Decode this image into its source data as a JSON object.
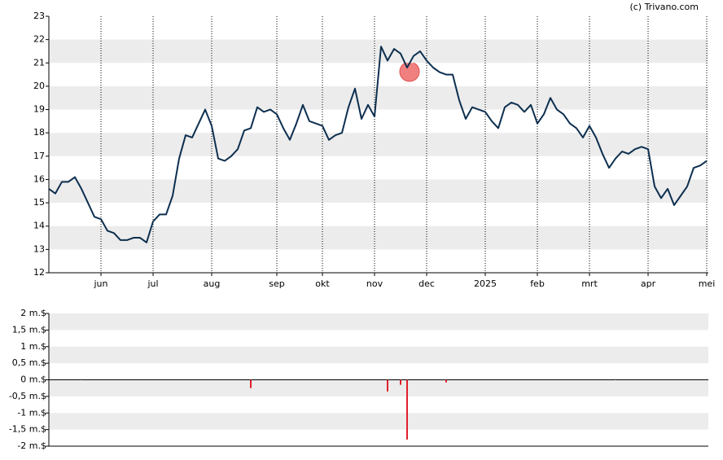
{
  "source": "(c) Trivano.com",
  "chart_data": [
    {
      "type": "line",
      "categories": [
        null,
        null,
        null,
        null,
        null,
        null,
        null,
        null,
        "jun",
        null,
        null,
        null,
        null,
        null,
        null,
        null,
        "jul",
        null,
        null,
        null,
        null,
        null,
        null,
        null,
        null,
        "aug",
        null,
        null,
        null,
        null,
        null,
        null,
        null,
        null,
        null,
        "sep",
        null,
        null,
        null,
        null,
        null,
        null,
        "okt",
        null,
        null,
        null,
        null,
        null,
        null,
        null,
        "nov",
        null,
        null,
        null,
        null,
        null,
        null,
        null,
        "dec",
        null,
        null,
        null,
        null,
        null,
        null,
        null,
        null,
        "2025",
        null,
        null,
        null,
        null,
        null,
        null,
        null,
        "feb",
        null,
        null,
        null,
        null,
        null,
        null,
        null,
        "mrt",
        null,
        null,
        null,
        null,
        null,
        null,
        null,
        null,
        "apr",
        null,
        null,
        null,
        null,
        null,
        null,
        null,
        null,
        "mei"
      ],
      "series": [
        {
          "color": "#0d2f4f",
          "values": [
            15.6,
            15.4,
            15.9,
            15.9,
            16.1,
            15.6,
            15.0,
            14.4,
            14.3,
            13.8,
            13.7,
            13.4,
            13.4,
            13.5,
            13.5,
            13.3,
            14.2,
            14.5,
            14.5,
            15.3,
            16.9,
            17.9,
            17.8,
            18.4,
            19.0,
            18.3,
            16.9,
            16.8,
            17.0,
            17.3,
            18.1,
            18.2,
            19.1,
            18.9,
            19.0,
            18.8,
            18.2,
            17.7,
            18.4,
            19.2,
            18.5,
            18.4,
            18.3,
            17.7,
            17.9,
            18.0,
            19.1,
            19.9,
            18.6,
            19.2,
            18.7,
            21.7,
            21.1,
            21.6,
            21.4,
            20.8,
            21.3,
            21.5,
            21.1,
            20.8,
            20.6,
            20.5,
            20.5,
            19.4,
            18.6,
            19.1,
            19.0,
            18.9,
            18.5,
            18.2,
            19.1,
            19.3,
            19.2,
            18.9,
            19.2,
            18.4,
            18.8,
            19.5,
            19.0,
            18.8,
            18.4,
            18.2,
            17.8,
            18.3,
            17.8,
            17.1,
            16.5,
            16.9,
            17.2,
            17.1,
            17.3,
            17.4,
            17.3,
            15.7,
            15.2,
            15.6,
            14.9,
            15.3,
            15.7,
            16.5,
            16.6,
            16.8
          ]
        }
      ],
      "ylim": [
        12,
        23
      ],
      "yticks": [
        12,
        13,
        14,
        15,
        16,
        17,
        18,
        19,
        20,
        21,
        22,
        23
      ],
      "grid": true
    },
    {
      "type": "bar",
      "series": [
        {
          "color": "#e0202a",
          "values": [
            null,
            null,
            null,
            null,
            null,
            0.02,
            null,
            null,
            null,
            null,
            null,
            null,
            null,
            null,
            null,
            null,
            null,
            null,
            null,
            null,
            null,
            null,
            null,
            null,
            null,
            null,
            null,
            null,
            null,
            null,
            null,
            -0.25,
            null,
            null,
            null,
            null,
            null,
            null,
            null,
            null,
            null,
            null,
            null,
            null,
            null,
            null,
            null,
            null,
            null,
            null,
            null,
            null,
            -0.35,
            null,
            -0.15,
            -1.8,
            null,
            null,
            null,
            null,
            null,
            -0.08,
            null,
            null,
            null,
            null,
            null,
            null,
            null,
            null,
            null,
            null,
            null,
            null,
            null,
            null,
            null,
            null,
            null,
            null,
            null,
            null,
            null,
            null,
            null,
            null,
            null,
            0.02,
            null,
            null,
            null,
            null,
            null,
            null,
            null,
            null,
            null,
            null,
            null,
            null,
            null,
            null
          ]
        }
      ],
      "ylim": [
        -2,
        2
      ],
      "yticks": [
        {
          "value": -2,
          "label": "-2 m.$"
        },
        {
          "value": -1.5,
          "label": "-1,5 m.$"
        },
        {
          "value": -1,
          "label": "-1 m.$"
        },
        {
          "value": -0.5,
          "label": "-0,5 m.$"
        },
        {
          "value": 0,
          "label": "0 m.$"
        },
        {
          "value": 0.5,
          "label": "0,5 m.$"
        },
        {
          "value": 1,
          "label": "1 m.$"
        },
        {
          "value": 1.5,
          "label": "1,5 m.$"
        },
        {
          "value": 2,
          "label": "2 m.$"
        }
      ],
      "grid": true
    }
  ]
}
